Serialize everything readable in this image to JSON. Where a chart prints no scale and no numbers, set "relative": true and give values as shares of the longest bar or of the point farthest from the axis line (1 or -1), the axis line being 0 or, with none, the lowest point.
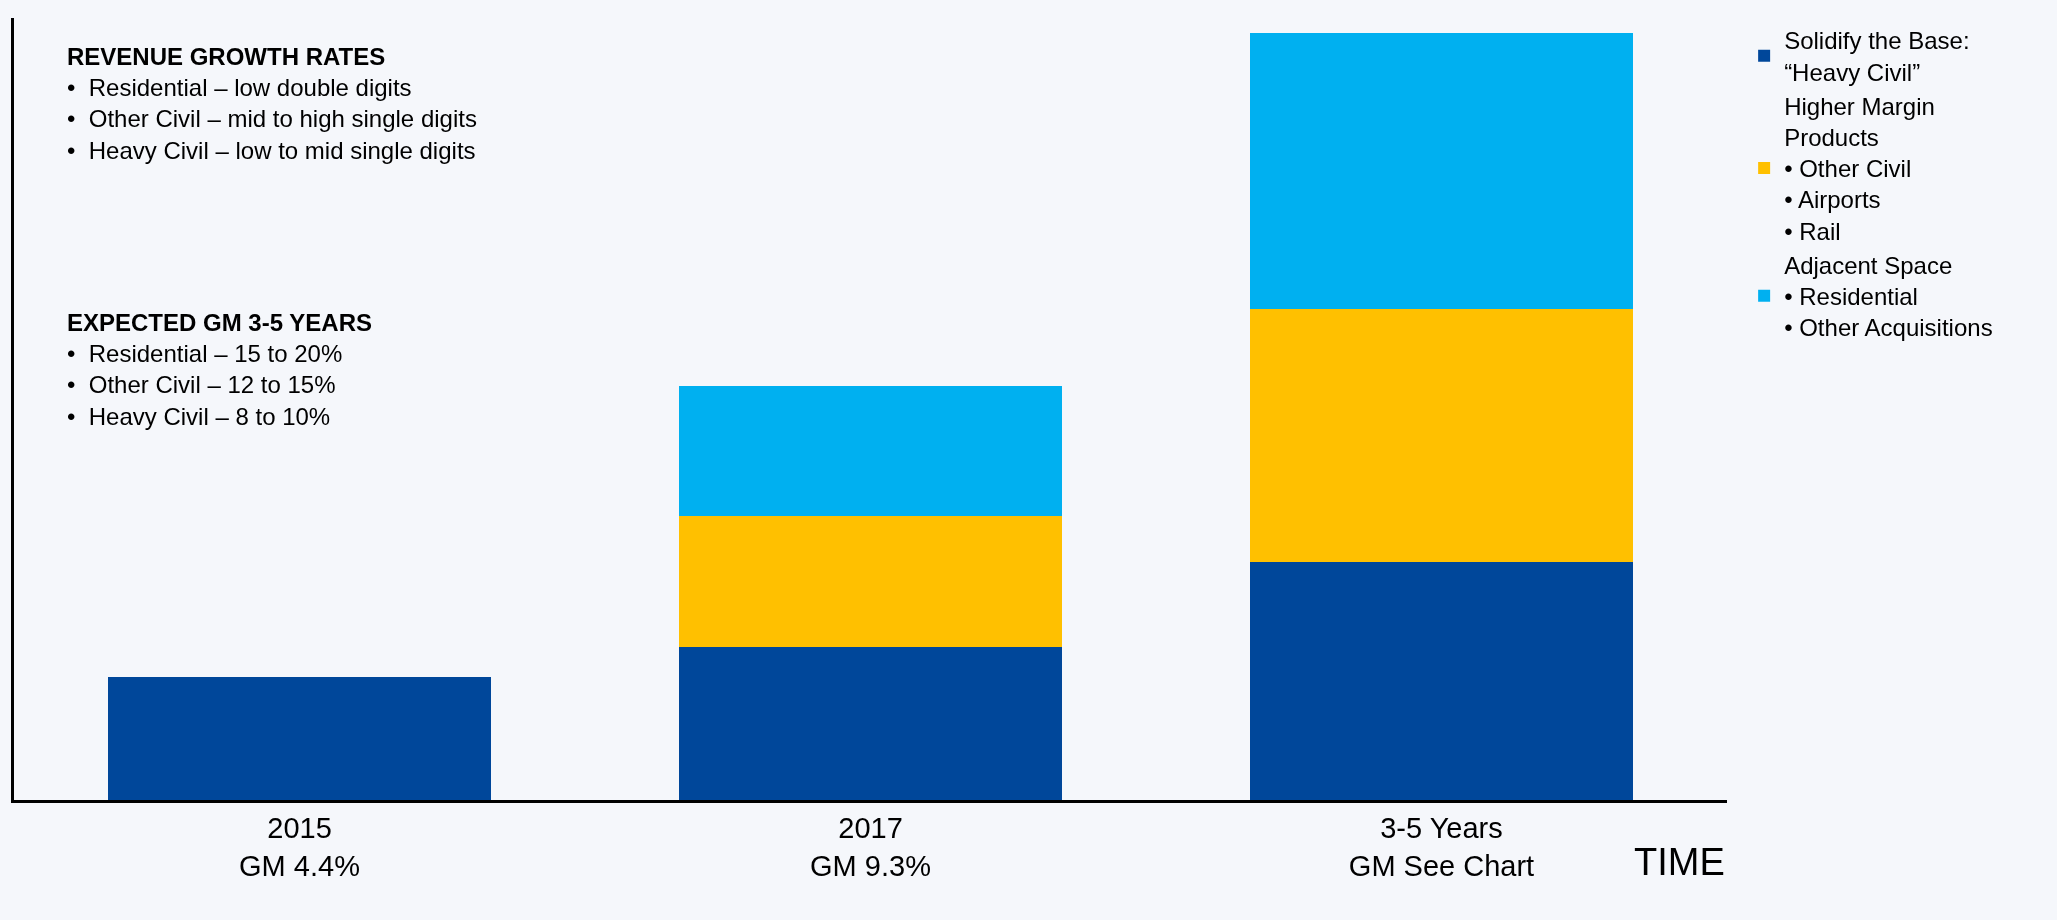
{
  "chart_data": {
    "type": "bar",
    "stacked": true,
    "relative": true,
    "xlabel": "TIME",
    "categories": [
      "2015\nGM 4.4%",
      "2017\nGM 9.3%",
      "3-5 Years\nGM See Chart"
    ],
    "series": [
      {
        "name": "Solidify the Base:\n“Heavy Civil”",
        "color": "#00479a",
        "values": [
          0.16,
          0.2,
          0.31
        ]
      },
      {
        "name": "Higher Margin\nProducts\n• Other Civil\n• Airports\n• Rail",
        "color": "#ffc000",
        "values": [
          null,
          0.17,
          0.33
        ]
      },
      {
        "name": "Adjacent Space\n• Residential\n• Other Acquisitions",
        "color": "#00b0f0",
        "values": [
          null,
          0.17,
          0.36
        ]
      }
    ],
    "annotations": [
      "REVENUE GROWTH RATES\n•  Residential – low double digits\n•  Other Civil – mid to high single digits\n•  Heavy Civil – low to mid single digits",
      "EXPECTED GM 3-5 YEARS\n•  Residential – 15 to 20%\n•  Other Civil – 12 to 15%\n•  Heavy Civil – 8 to 10%"
    ],
    "legend": "right",
    "grid": false,
    "tick_labels": "x"
  }
}
